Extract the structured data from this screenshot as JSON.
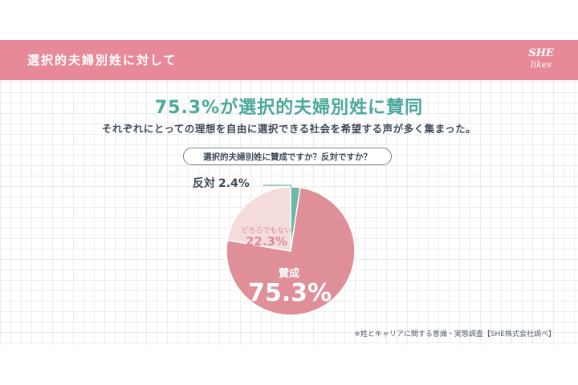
{
  "header": {
    "title": "選択的夫婦別姓に対して",
    "logo_line1": "SHE",
    "logo_line2": "likes"
  },
  "headline": "75.3%が選択的夫婦別姓に賛同",
  "subline": "それぞれにとっての理想を自由に選択できる社会を希望する声が多く集まった。",
  "question": "選択的夫婦別姓に賛成ですか？反対ですか？",
  "note": "※姓とキャリアに関する意識・実態調査【SHE株式会社調べ】",
  "colors": {
    "header": "#e8899a",
    "headline": "#4aa99a",
    "agree": "#df8f98",
    "neutral": "#f5dcdc",
    "oppose": "#6bb8a8"
  },
  "chart_data": {
    "type": "pie",
    "title": "選択的夫婦別姓に賛成ですか？反対ですか？",
    "slices": [
      {
        "label": "反対",
        "value": 2.4,
        "display": "2.4%",
        "color": "#6bb8a8"
      },
      {
        "label": "賛成",
        "value": 75.3,
        "display": "75.3%",
        "color": "#df8f98"
      },
      {
        "label": "どちらでもない",
        "value": 22.3,
        "display": "22.3%",
        "color": "#f5dcdc"
      }
    ],
    "start": "12 o'clock",
    "direction": "clockwise"
  }
}
